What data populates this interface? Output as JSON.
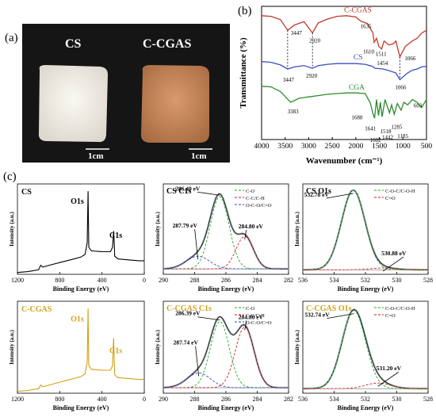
{
  "panel_labels": {
    "a": "(a)",
    "b": "(b)",
    "c": "(c)"
  },
  "photo": {
    "labels": [
      "CS",
      "C-CGAS"
    ],
    "scale_bars": [
      "1cm",
      "1cm"
    ],
    "colors": {
      "background": "#151515",
      "cs": "#efece6",
      "ccgas": "#c98a5a"
    }
  },
  "chart_data": [
    {
      "id": "ftir",
      "type": "line",
      "xlabel": "Wavenumber (cm⁻¹)",
      "ylabel": "Transmittance (%)",
      "xlim": [
        4000,
        500
      ],
      "xticks": [
        4000,
        3500,
        3000,
        2500,
        2000,
        1500,
        1000,
        500
      ],
      "series": [
        {
          "name": "C-CGAS",
          "color": "#c0392b",
          "x": [
            4000,
            3800,
            3600,
            3447,
            3300,
            3100,
            2920,
            2800,
            2600,
            2400,
            2200,
            2000,
            1900,
            1750,
            1635,
            1610,
            1560,
            1511,
            1454,
            1400,
            1300,
            1200,
            1150,
            1066,
            950,
            800,
            700,
            600,
            500
          ],
          "y": [
            0.93,
            0.925,
            0.9,
            0.82,
            0.86,
            0.885,
            0.8,
            0.875,
            0.905,
            0.925,
            0.93,
            0.92,
            0.89,
            0.87,
            0.8,
            0.73,
            0.76,
            0.7,
            0.68,
            0.74,
            0.71,
            0.72,
            0.74,
            0.62,
            0.7,
            0.74,
            0.76,
            0.8,
            0.82
          ]
        },
        {
          "name": "CS",
          "color": "#3b4fc4",
          "x": [
            4000,
            3800,
            3600,
            3447,
            3300,
            3100,
            2920,
            2800,
            2600,
            2400,
            2200,
            2000,
            1800,
            1650,
            1590,
            1420,
            1380,
            1320,
            1150,
            1066,
            900,
            800,
            700,
            600,
            500
          ],
          "y": [
            0.585,
            0.58,
            0.56,
            0.53,
            0.545,
            0.555,
            0.535,
            0.555,
            0.565,
            0.57,
            0.57,
            0.57,
            0.565,
            0.55,
            0.535,
            0.53,
            0.525,
            0.52,
            0.5,
            0.45,
            0.5,
            0.52,
            0.53,
            0.545,
            0.55
          ]
        },
        {
          "name": "CGA",
          "color": "#2e8b2e",
          "x": [
            4000,
            3800,
            3600,
            3383,
            3200,
            3000,
            2800,
            2600,
            2400,
            2200,
            2000,
            1800,
            1688,
            1641,
            1602,
            1560,
            1518,
            1480,
            1442,
            1380,
            1285,
            1240,
            1185,
            1120,
            1040,
            980,
            900,
            800,
            700,
            603,
            500
          ],
          "y": [
            0.4,
            0.395,
            0.36,
            0.28,
            0.31,
            0.32,
            0.33,
            0.34,
            0.345,
            0.35,
            0.35,
            0.345,
            0.27,
            0.2,
            0.16,
            0.3,
            0.18,
            0.28,
            0.17,
            0.3,
            0.2,
            0.26,
            0.19,
            0.27,
            0.22,
            0.28,
            0.26,
            0.3,
            0.28,
            0.24,
            0.3
          ]
        }
      ],
      "annotations": [
        {
          "text": "3447",
          "series": "C-CGAS",
          "x": 3447
        },
        {
          "text": "2920",
          "series": "C-CGAS",
          "x": 2920
        },
        {
          "text": "1635",
          "series": "C-CGAS",
          "x": 1635
        },
        {
          "text": "1610",
          "series": "C-CGAS",
          "x": 1610
        },
        {
          "text": "1511",
          "series": "C-CGAS",
          "x": 1511
        },
        {
          "text": "1454",
          "series": "C-CGAS",
          "x": 1454
        },
        {
          "text": "1066",
          "series": "C-CGAS",
          "x": 1066
        },
        {
          "text": "3447",
          "series": "CS",
          "x": 3447
        },
        {
          "text": "2920",
          "series": "CS",
          "x": 2920
        },
        {
          "text": "1066",
          "series": "CS",
          "x": 1066
        },
        {
          "text": "3383",
          "series": "CGA",
          "x": 3383
        },
        {
          "text": "1688",
          "series": "CGA",
          "x": 1688
        },
        {
          "text": "1641",
          "series": "CGA",
          "x": 1641
        },
        {
          "text": "1602",
          "series": "CGA",
          "x": 1602
        },
        {
          "text": "1518",
          "series": "CGA",
          "x": 1518
        },
        {
          "text": "1442",
          "series": "CGA",
          "x": 1442
        },
        {
          "text": "1285",
          "series": "CGA",
          "x": 1285
        },
        {
          "text": "1185",
          "series": "CGA",
          "x": 1185
        },
        {
          "text": "603",
          "series": "CGA",
          "x": 603
        }
      ],
      "dashed_guides": [
        3447,
        2920,
        1066
      ]
    },
    {
      "id": "cs-survey",
      "type": "line",
      "title": "CS",
      "xlabel": "Binding Energy (eV)",
      "ylabel": "Intensity (a.u.)",
      "xlim": [
        1200,
        0
      ],
      "xticks": [
        1200,
        800,
        400,
        0
      ],
      "line_color": "#000000",
      "peak_labels": [
        {
          "text": "O1s",
          "x": 532
        },
        {
          "text": "C1s",
          "x": 285
        }
      ],
      "x": [
        1200,
        1100,
        1000,
        980,
        960,
        900,
        800,
        700,
        600,
        560,
        540,
        532,
        525,
        500,
        400,
        320,
        300,
        290,
        285,
        280,
        250,
        150,
        50,
        0
      ],
      "y": [
        0.02,
        0.03,
        0.05,
        0.1,
        0.08,
        0.1,
        0.13,
        0.16,
        0.19,
        0.22,
        0.35,
        0.92,
        0.3,
        0.26,
        0.25,
        0.25,
        0.3,
        0.48,
        0.37,
        0.2,
        0.17,
        0.16,
        0.15,
        0.15
      ]
    },
    {
      "id": "cs-c1s",
      "type": "line",
      "title": "CS C1s",
      "xlabel": "Binding Energy (eV)",
      "ylabel": "Intensity (a.u.)",
      "xlim": [
        290,
        282
      ],
      "xticks": [
        290,
        288,
        286,
        284,
        282
      ],
      "legend": [
        {
          "label": "C-O",
          "color": "#22aa22"
        },
        {
          "label": "C-C/C-H",
          "color": "#cc2222"
        },
        {
          "label": "O-C-O/C=O",
          "color": "#3344cc"
        }
      ],
      "peaks": [
        {
          "label": "286.40 eV",
          "center": 286.4,
          "height": 0.8,
          "width": 0.6,
          "color": "#22aa22"
        },
        {
          "label": "284.80 eV",
          "center": 284.8,
          "height": 0.36,
          "width": 0.55,
          "color": "#cc2222"
        },
        {
          "label": "287.79 eV",
          "center": 287.79,
          "height": 0.14,
          "width": 0.75,
          "color": "#3344cc"
        }
      ],
      "background_level": 0.06
    },
    {
      "id": "cs-o1s",
      "type": "line",
      "title": "CS O1s",
      "xlabel": "Binding Energy (eV)",
      "ylabel": "Intensity (a.u.)",
      "xlim": [
        536,
        528
      ],
      "xticks": [
        536,
        534,
        532,
        530,
        528
      ],
      "legend": [
        {
          "label": "C-O-C/C-O-H",
          "color": "#22aa22"
        },
        {
          "label": "C=O",
          "color": "#cc2222"
        }
      ],
      "peaks": [
        {
          "label": "532.78 eV",
          "center": 532.78,
          "height": 0.88,
          "width": 0.75,
          "color": "#22aa22"
        },
        {
          "label": "530.88 eV",
          "center": 530.88,
          "height": 0.02,
          "width": 0.8,
          "color": "#cc2222"
        }
      ],
      "background_level": 0.05
    },
    {
      "id": "ccgas-survey",
      "type": "line",
      "title": "C-CGAS",
      "xlabel": "Binding Energy (eV)",
      "ylabel": "Intensity (a.u.)",
      "xlim": [
        1200,
        0
      ],
      "xticks": [
        1200,
        800,
        400,
        0
      ],
      "line_color": "#d4a017",
      "peak_labels": [
        {
          "text": "O1s",
          "x": 532
        },
        {
          "text": "C1s",
          "x": 285
        }
      ],
      "x": [
        1200,
        1100,
        1000,
        980,
        960,
        900,
        800,
        700,
        600,
        560,
        540,
        532,
        525,
        500,
        400,
        320,
        300,
        290,
        285,
        280,
        250,
        150,
        50,
        0
      ],
      "y": [
        0.02,
        0.03,
        0.05,
        0.09,
        0.07,
        0.09,
        0.12,
        0.15,
        0.18,
        0.21,
        0.34,
        0.92,
        0.3,
        0.26,
        0.25,
        0.25,
        0.3,
        0.6,
        0.4,
        0.2,
        0.17,
        0.16,
        0.15,
        0.15
      ]
    },
    {
      "id": "ccgas-c1s",
      "type": "line",
      "title": "C-CGAS C1s",
      "xlabel": "Binding Energy (eV)",
      "ylabel": "Intensity (a.u.)",
      "xlim": [
        290,
        282
      ],
      "xticks": [
        290,
        288,
        286,
        284,
        282
      ],
      "legend": [
        {
          "label": "C-O",
          "color": "#22aa22"
        },
        {
          "label": "C-C/C-H",
          "color": "#cc2222"
        },
        {
          "label": "O-C-O/C=O",
          "color": "#3344cc"
        }
      ],
      "peaks": [
        {
          "label": "286.39 eV",
          "center": 286.39,
          "height": 0.72,
          "width": 0.6,
          "color": "#22aa22"
        },
        {
          "label": "284.80 eV",
          "center": 284.8,
          "height": 0.66,
          "width": 0.6,
          "color": "#cc2222"
        },
        {
          "label": "287.74 eV",
          "center": 287.74,
          "height": 0.16,
          "width": 0.75,
          "color": "#3344cc"
        }
      ],
      "background_level": 0.06
    },
    {
      "id": "ccgas-o1s",
      "type": "line",
      "title": "C-CGAS O1s",
      "xlabel": "Binding Energy (eV)",
      "ylabel": "Intensity (a.u.)",
      "xlim": [
        536,
        528
      ],
      "xticks": [
        536,
        534,
        532,
        530,
        528
      ],
      "legend": [
        {
          "label": "C-O-C/C-O-H",
          "color": "#22aa22"
        },
        {
          "label": "C=O",
          "color": "#cc2222"
        }
      ],
      "peaks": [
        {
          "label": "532.74 eV",
          "center": 532.74,
          "height": 0.85,
          "width": 0.75,
          "color": "#22aa22"
        },
        {
          "label": "531.20 eV",
          "center": 531.2,
          "height": 0.06,
          "width": 0.8,
          "color": "#cc2222"
        }
      ],
      "background_level": 0.05
    }
  ]
}
